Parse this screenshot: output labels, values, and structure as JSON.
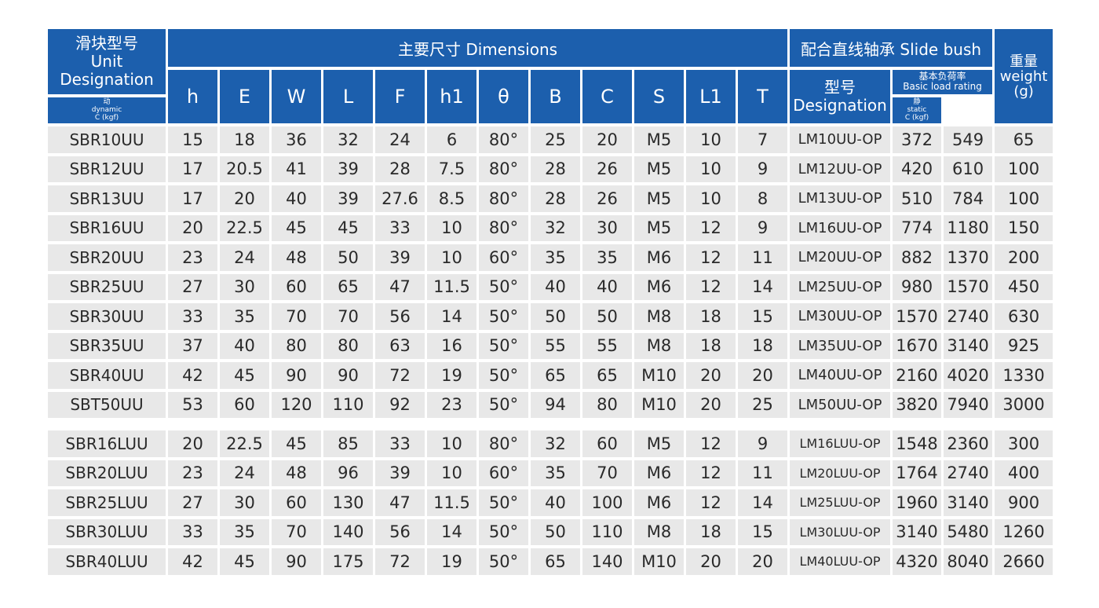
{
  "header": {
    "unit_cn": "滑块型号",
    "unit_en1": "Unit",
    "unit_en2": "Designation",
    "dimensions_title": "主要尺寸 Dimensions",
    "slide_bush_title": "配合直线轴承 Slide bush",
    "weight_cn": "重量",
    "weight_en": "weight",
    "weight_unit": "(g)",
    "dimension_columns": [
      "h",
      "E",
      "W",
      "L",
      "F",
      "h1",
      "θ",
      "B",
      "C",
      "S",
      "L1",
      "T"
    ],
    "bush_model_cn": "型号",
    "bush_model_en": "Designation",
    "rating_cn": "基本负荷率",
    "rating_en": "Basic load rating",
    "dynamic_cn": "动",
    "dynamic_en": "dynamic",
    "dynamic_unit": "C (kgf)",
    "static_cn": "静",
    "static_en": "static",
    "static_unit": "C (kgf)"
  },
  "rows_standard": [
    {
      "unit": "SBR10UU",
      "h": "15",
      "E": "18",
      "W": "36",
      "L": "32",
      "F": "24",
      "h1": "6",
      "theta": "80°",
      "B": "25",
      "C": "20",
      "S": "M5",
      "L1": "10",
      "T": "7",
      "bush": "LM10UU-OP",
      "dynamic": "372",
      "static": "549",
      "weight": "65"
    },
    {
      "unit": "SBR12UU",
      "h": "17",
      "E": "20.5",
      "W": "41",
      "L": "39",
      "F": "28",
      "h1": "7.5",
      "theta": "80°",
      "B": "28",
      "C": "26",
      "S": "M5",
      "L1": "10",
      "T": "9",
      "bush": "LM12UU-OP",
      "dynamic": "420",
      "static": "610",
      "weight": "100"
    },
    {
      "unit": "SBR13UU",
      "h": "17",
      "E": "20",
      "W": "40",
      "L": "39",
      "F": "27.6",
      "h1": "8.5",
      "theta": "80°",
      "B": "28",
      "C": "26",
      "S": "M5",
      "L1": "10",
      "T": "8",
      "bush": "LM13UU-OP",
      "dynamic": "510",
      "static": "784",
      "weight": "100"
    },
    {
      "unit": "SBR16UU",
      "h": "20",
      "E": "22.5",
      "W": "45",
      "L": "45",
      "F": "33",
      "h1": "10",
      "theta": "80°",
      "B": "32",
      "C": "30",
      "S": "M5",
      "L1": "12",
      "T": "9",
      "bush": "LM16UU-OP",
      "dynamic": "774",
      "static": "1180",
      "weight": "150"
    },
    {
      "unit": "SBR20UU",
      "h": "23",
      "E": "24",
      "W": "48",
      "L": "50",
      "F": "39",
      "h1": "10",
      "theta": "60°",
      "B": "35",
      "C": "35",
      "S": "M6",
      "L1": "12",
      "T": "11",
      "bush": "LM20UU-OP",
      "dynamic": "882",
      "static": "1370",
      "weight": "200"
    },
    {
      "unit": "SBR25UU",
      "h": "27",
      "E": "30",
      "W": "60",
      "L": "65",
      "F": "47",
      "h1": "11.5",
      "theta": "50°",
      "B": "40",
      "C": "40",
      "S": "M6",
      "L1": "12",
      "T": "14",
      "bush": "LM25UU-OP",
      "dynamic": "980",
      "static": "1570",
      "weight": "450"
    },
    {
      "unit": "SBR30UU",
      "h": "33",
      "E": "35",
      "W": "70",
      "L": "70",
      "F": "56",
      "h1": "14",
      "theta": "50°",
      "B": "50",
      "C": "50",
      "S": "M8",
      "L1": "18",
      "T": "15",
      "bush": "LM30UU-OP",
      "dynamic": "1570",
      "static": "2740",
      "weight": "630"
    },
    {
      "unit": "SBR35UU",
      "h": "37",
      "E": "40",
      "W": "80",
      "L": "80",
      "F": "63",
      "h1": "16",
      "theta": "50°",
      "B": "55",
      "C": "55",
      "S": "M8",
      "L1": "18",
      "T": "18",
      "bush": "LM35UU-OP",
      "dynamic": "1670",
      "static": "3140",
      "weight": "925"
    },
    {
      "unit": "SBR40UU",
      "h": "42",
      "E": "45",
      "W": "90",
      "L": "90",
      "F": "72",
      "h1": "19",
      "theta": "50°",
      "B": "65",
      "C": "65",
      "S": "M10",
      "L1": "20",
      "T": "20",
      "bush": "LM40UU-OP",
      "dynamic": "2160",
      "static": "4020",
      "weight": "1330"
    },
    {
      "unit": "SBT50UU",
      "h": "53",
      "E": "60",
      "W": "120",
      "L": "110",
      "F": "92",
      "h1": "23",
      "theta": "50°",
      "B": "94",
      "C": "80",
      "S": "M10",
      "L1": "20",
      "T": "25",
      "bush": "LM50UU-OP",
      "dynamic": "3820",
      "static": "7940",
      "weight": "3000"
    }
  ],
  "rows_long": [
    {
      "unit": "SBR16LUU",
      "h": "20",
      "E": "22.5",
      "W": "45",
      "L": "85",
      "F": "33",
      "h1": "10",
      "theta": "80°",
      "B": "32",
      "C": "60",
      "S": "M5",
      "L1": "12",
      "T": "9",
      "bush": "LM16LUU-OP",
      "dynamic": "1548",
      "static": "2360",
      "weight": "300"
    },
    {
      "unit": "SBR20LUU",
      "h": "23",
      "E": "24",
      "W": "48",
      "L": "96",
      "F": "39",
      "h1": "10",
      "theta": "60°",
      "B": "35",
      "C": "70",
      "S": "M6",
      "L1": "12",
      "T": "11",
      "bush": "LM20LUU-OP",
      "dynamic": "1764",
      "static": "2740",
      "weight": "400"
    },
    {
      "unit": "SBR25LUU",
      "h": "27",
      "E": "30",
      "W": "60",
      "L": "130",
      "F": "47",
      "h1": "11.5",
      "theta": "50°",
      "B": "40",
      "C": "100",
      "S": "M6",
      "L1": "12",
      "T": "14",
      "bush": "LM25LUU-OP",
      "dynamic": "1960",
      "static": "3140",
      "weight": "900"
    },
    {
      "unit": "SBR30LUU",
      "h": "33",
      "E": "35",
      "W": "70",
      "L": "140",
      "F": "56",
      "h1": "14",
      "theta": "50°",
      "B": "50",
      "C": "110",
      "S": "M8",
      "L1": "18",
      "T": "15",
      "bush": "LM30LUU-OP",
      "dynamic": "3140",
      "static": "5480",
      "weight": "1260"
    },
    {
      "unit": "SBR40LUU",
      "h": "42",
      "E": "45",
      "W": "90",
      "L": "175",
      "F": "72",
      "h1": "19",
      "theta": "50°",
      "B": "65",
      "C": "140",
      "S": "M10",
      "L1": "20",
      "T": "20",
      "bush": "LM40LUU-OP",
      "dynamic": "4320",
      "static": "8040",
      "weight": "2660"
    }
  ],
  "colors": {
    "header_bg": "#1c5fad",
    "header_text": "#ffffff",
    "cell_bg": "#e8e8e8",
    "cell_text": "#2a2a2a"
  }
}
